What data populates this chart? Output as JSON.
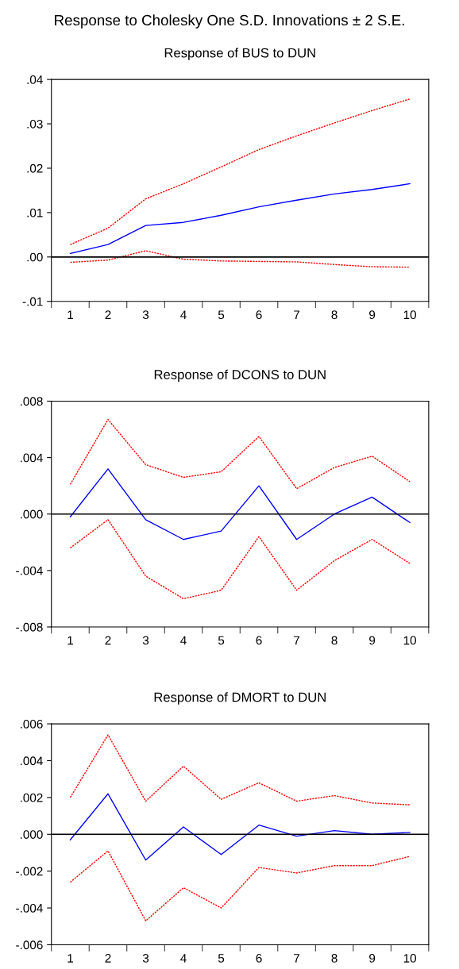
{
  "chart_data": [
    {
      "type": "line",
      "title": "Response to Cholesky One S.D. Innovations ± 2 S.E.",
      "subtitle": "Response of BUS to DUN",
      "categories": [
        "1",
        "2",
        "3",
        "4",
        "5",
        "6",
        "7",
        "8",
        "9",
        "10"
      ],
      "series": [
        {
          "color": "#0000ff",
          "line_style": "solid",
          "values": [
            0.0008,
            0.0028,
            0.0071,
            0.0078,
            0.0094,
            0.0113,
            0.0128,
            0.0142,
            0.0152,
            0.0165
          ]
        },
        {
          "color": "#ff0000",
          "line_style": "dashed",
          "values": [
            0.0028,
            0.0065,
            0.0131,
            0.0165,
            0.0203,
            0.0242,
            0.0273,
            0.0302,
            0.033,
            0.0356
          ]
        },
        {
          "color": "#ff0000",
          "line_style": "dashed",
          "values": [
            -0.0012,
            -0.0007,
            0.0014,
            -0.0005,
            -0.0009,
            -0.001,
            -0.0011,
            -0.0017,
            -0.0022,
            -0.0023
          ]
        }
      ],
      "ylim": [
        -0.01,
        0.04
      ],
      "yticks": [
        {
          "value": -0.01,
          "label": "-.01"
        },
        {
          "value": 0,
          "label": ".00"
        },
        {
          "value": 0.01,
          "label": ".01"
        },
        {
          "value": 0.02,
          "label": ".02"
        },
        {
          "value": 0.03,
          "label": ".03"
        },
        {
          "value": 0.04,
          "label": ".04"
        }
      ],
      "ref_lines": [
        {
          "axis": "y",
          "value": 0,
          "color": "#000000"
        }
      ],
      "grid": false,
      "legend": false
    },
    {
      "type": "line",
      "title": "Response of DCONS to DUN",
      "categories": [
        "1",
        "2",
        "3",
        "4",
        "5",
        "6",
        "7",
        "8",
        "9",
        "10"
      ],
      "series": [
        {
          "color": "#0000ff",
          "line_style": "solid",
          "values": [
            -0.0002,
            0.0032,
            -0.0004,
            -0.0018,
            -0.0012,
            0.002,
            -0.0018,
            0.0,
            0.0012,
            -0.0006
          ]
        },
        {
          "color": "#ff0000",
          "line_style": "dashed",
          "values": [
            0.0021,
            0.0067,
            0.0035,
            0.0026,
            0.003,
            0.0055,
            0.0018,
            0.0033,
            0.0041,
            0.0023
          ]
        },
        {
          "color": "#ff0000",
          "line_style": "dashed",
          "values": [
            -0.0024,
            -0.0004,
            -0.0044,
            -0.006,
            -0.0054,
            -0.0016,
            -0.0054,
            -0.0033,
            -0.0018,
            -0.0035
          ]
        }
      ],
      "ylim": [
        -0.008,
        0.008
      ],
      "yticks": [
        {
          "value": -0.008,
          "label": "-.008"
        },
        {
          "value": -0.004,
          "label": "-.004"
        },
        {
          "value": 0,
          "label": ".000"
        },
        {
          "value": 0.004,
          "label": ".004"
        },
        {
          "value": 0.008,
          "label": ".008"
        }
      ],
      "ref_lines": [
        {
          "axis": "y",
          "value": 0,
          "color": "#000000"
        }
      ],
      "grid": false,
      "legend": false
    },
    {
      "type": "line",
      "title": "Response of DMORT to DUN",
      "categories": [
        "1",
        "2",
        "3",
        "4",
        "5",
        "6",
        "7",
        "8",
        "9",
        "10"
      ],
      "series": [
        {
          "color": "#0000ff",
          "line_style": "solid",
          "values": [
            -0.0003,
            0.0022,
            -0.0014,
            0.0004,
            -0.0011,
            0.0005,
            -0.0001,
            0.0002,
            0.0,
            0.0001
          ]
        },
        {
          "color": "#ff0000",
          "line_style": "dashed",
          "values": [
            0.002,
            0.0054,
            0.0018,
            0.0037,
            0.0019,
            0.0028,
            0.0018,
            0.0021,
            0.0017,
            0.0016
          ]
        },
        {
          "color": "#ff0000",
          "line_style": "dashed",
          "values": [
            -0.0026,
            -0.0009,
            -0.0047,
            -0.0029,
            -0.004,
            -0.0018,
            -0.0021,
            -0.0017,
            -0.0017,
            -0.0012
          ]
        }
      ],
      "ylim": [
        -0.006,
        0.006
      ],
      "yticks": [
        {
          "value": -0.006,
          "label": "-.006"
        },
        {
          "value": -0.004,
          "label": "-.004"
        },
        {
          "value": -0.002,
          "label": "-.002"
        },
        {
          "value": 0,
          "label": ".000"
        },
        {
          "value": 0.002,
          "label": ".002"
        },
        {
          "value": 0.004,
          "label": ".004"
        },
        {
          "value": 0.006,
          "label": ".006"
        }
      ],
      "ref_lines": [
        {
          "axis": "y",
          "value": 0,
          "color": "#000000"
        }
      ],
      "grid": false,
      "legend": false
    }
  ]
}
